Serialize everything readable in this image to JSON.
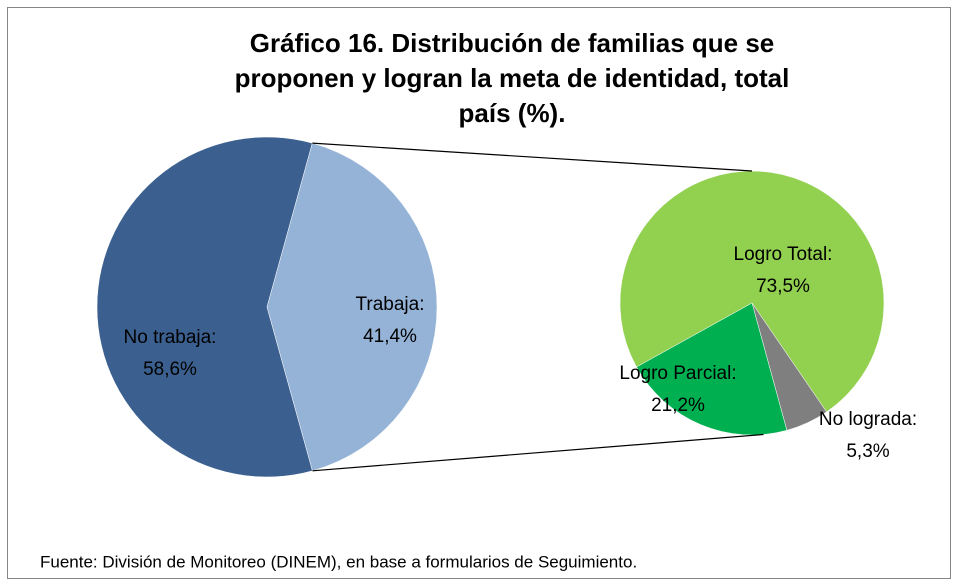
{
  "chart_data": [
    {
      "type": "pie",
      "title": [
        "Gráfico 16. Distribución de familias que se",
        "proponen y logran la meta de identidad, total",
        "país (%)."
      ],
      "categories": [
        "No trabaja:",
        "Trabaja:"
      ],
      "values": [
        58.6,
        41.4
      ],
      "value_labels": [
        "58,6%",
        "41,4%"
      ],
      "colors": [
        "#3b6090",
        "#95b3d7"
      ],
      "source": "Fuente: División de Monitoreo (DINEM), en base a formularios de Seguimiento."
    },
    {
      "type": "pie",
      "categories": [
        "Logro Total:",
        "No lograda:",
        "Logro Parcial:"
      ],
      "values": [
        73.5,
        5.3,
        21.2
      ],
      "value_labels": [
        "73,5%",
        "5,3%",
        "21,2%"
      ],
      "colors": [
        "#92d050",
        "#7f7f7f",
        "#00b050"
      ]
    }
  ]
}
